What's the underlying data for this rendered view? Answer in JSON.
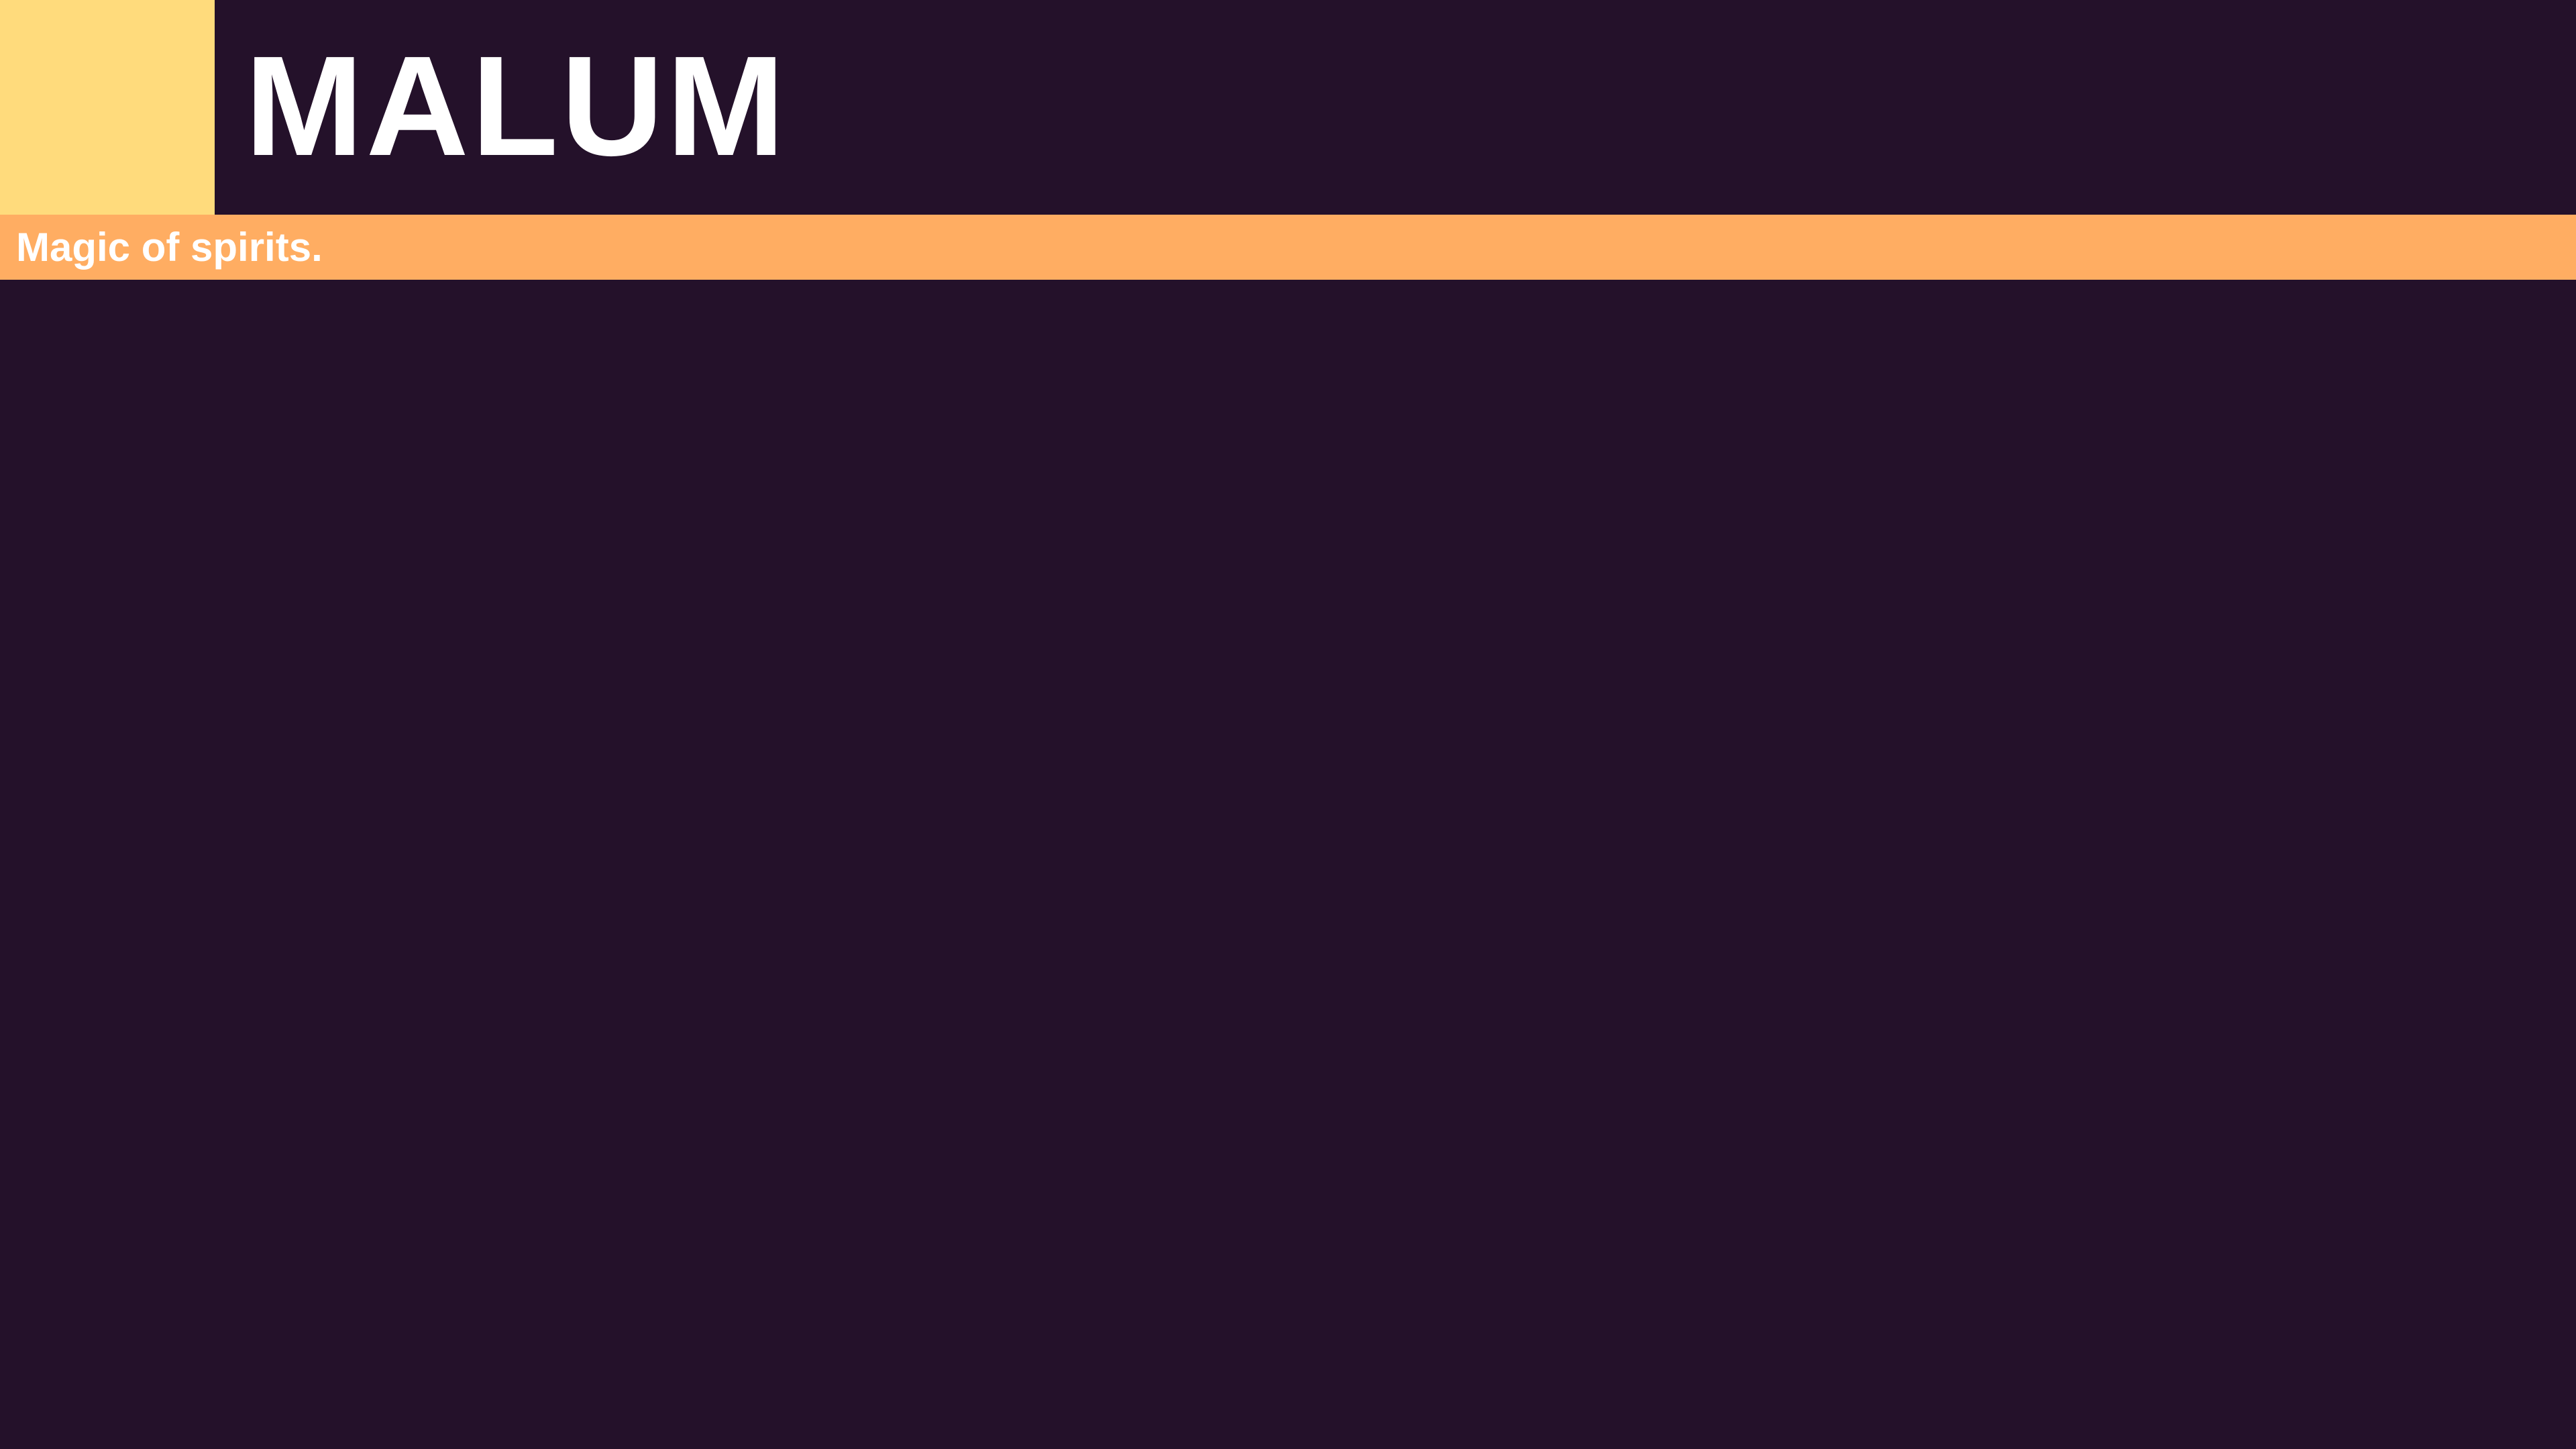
{
  "header": {
    "title": "MALUM"
  },
  "subtitle_bar": {
    "text": "Magic of spirits."
  },
  "colors": {
    "background": "#24112a",
    "accent_square": "#ffdb7c",
    "subtitle_bar": "#ffad62",
    "text": "#ffffff"
  }
}
